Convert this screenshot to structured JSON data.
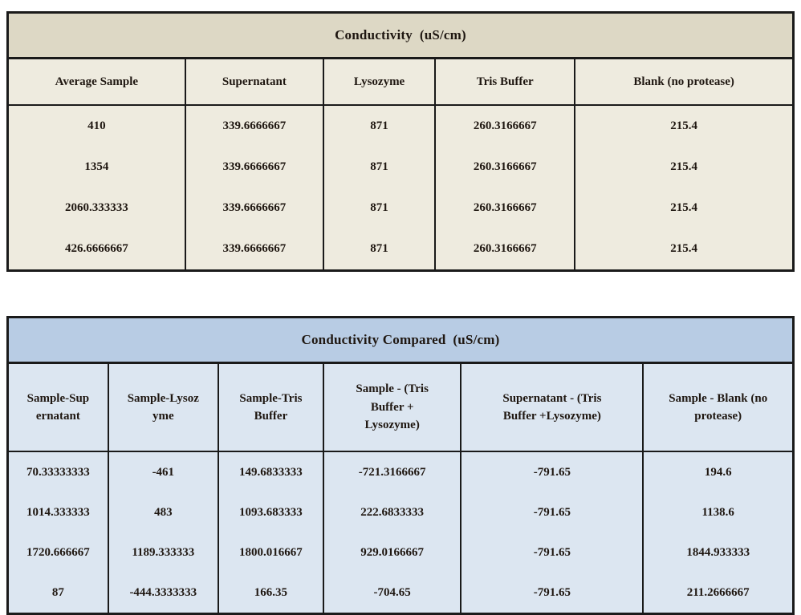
{
  "theme": {
    "t1_title_bg": "#ddd8c5",
    "t1_header_bg": "#eeebdf",
    "t1_body_bg": "#eeebdf",
    "t2_title_bg": "#b8cce4",
    "t2_header_bg": "#dce6f1",
    "t2_body_bg": "#dce6f1",
    "border_color": "#1a1a1a",
    "text_color": "#1f1711"
  },
  "table1": {
    "title": "Conductivity  (uS/cm)",
    "columns": [
      "Average Sample",
      "Supernatant",
      "Lysozyme",
      "Tris Buffer",
      "Blank (no protease)"
    ],
    "rows": [
      [
        "410",
        "339.6666667",
        "871",
        "260.3166667",
        "215.4"
      ],
      [
        "1354",
        "339.6666667",
        "871",
        "260.3166667",
        "215.4"
      ],
      [
        "2060.333333",
        "339.6666667",
        "871",
        "260.3166667",
        "215.4"
      ],
      [
        "426.6666667",
        "339.6666667",
        "871",
        "260.3166667",
        "215.4"
      ]
    ]
  },
  "table2": {
    "title": "Conductivity Compared  (uS/cm)",
    "columns": [
      "Sample-Sup\nernatant",
      "Sample-Lysoz\nyme",
      "Sample-Tris\nBuffer",
      "Sample - (Tris\nBuffer +\nLysozyme)",
      "Supernatant - (Tris\nBuffer +Lysozyme)",
      "Sample - Blank (no\nprotease)"
    ],
    "rows": [
      [
        "70.33333333",
        "-461",
        "149.6833333",
        "-721.3166667",
        "-791.65",
        "194.6"
      ],
      [
        "1014.333333",
        "483",
        "1093.683333",
        "222.6833333",
        "-791.65",
        "1138.6"
      ],
      [
        "1720.666667",
        "1189.333333",
        "1800.016667",
        "929.0166667",
        "-791.65",
        "1844.933333"
      ],
      [
        "87",
        "-444.3333333",
        "166.35",
        "-704.65",
        "-791.65",
        "211.2666667"
      ]
    ]
  }
}
